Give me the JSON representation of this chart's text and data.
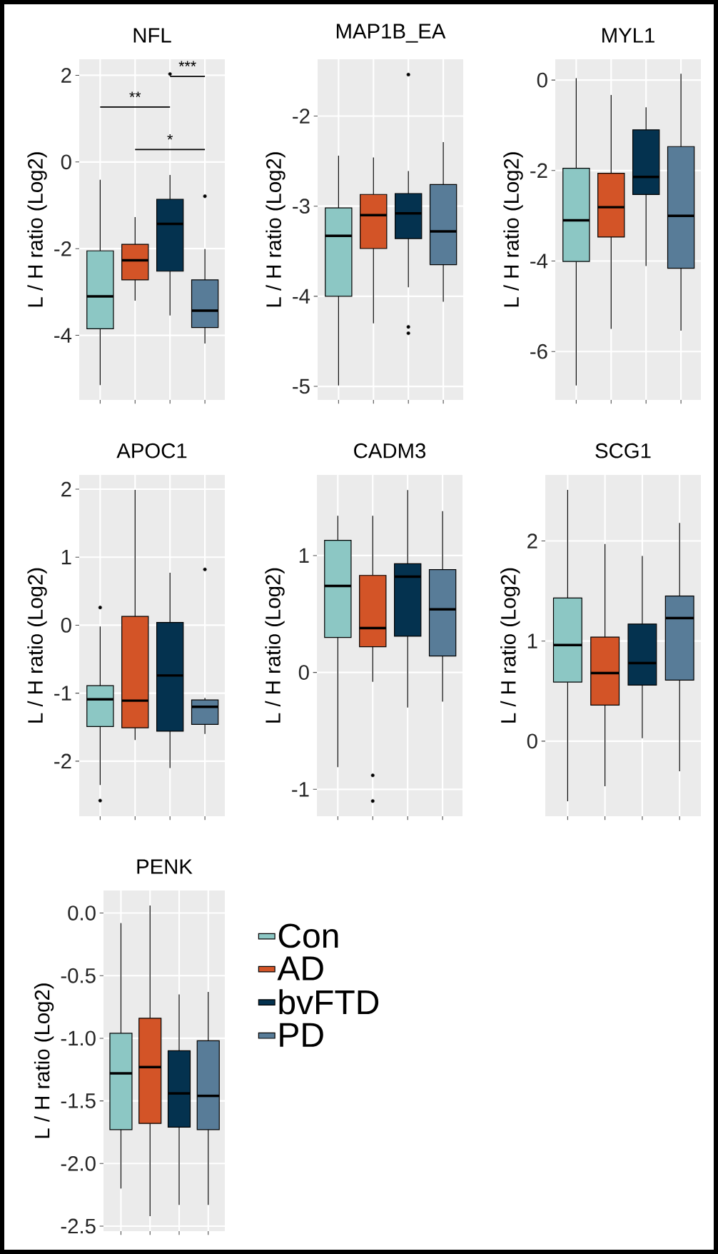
{
  "chart_data": [
    {
      "type": "box",
      "title": "NFL",
      "ylabel": "L / H ratio (Log2)",
      "categories": [
        null,
        null,
        null,
        null
      ],
      "colors": [
        "#8cc7c4",
        "#d35427",
        "#04324f",
        "#587c98"
      ],
      "boxes": [
        {
          "low": -5.15,
          "q1": -3.85,
          "median": -3.1,
          "q3": -2.05,
          "high": -0.41
        },
        {
          "low": -3.2,
          "q1": -2.72,
          "median": -2.27,
          "q3": -1.9,
          "high": -1.27
        },
        {
          "low": -3.54,
          "q1": -2.52,
          "median": -1.43,
          "q3": -0.86,
          "high": -0.3,
          "outliers": [
            2.03
          ]
        },
        {
          "low": -4.19,
          "q1": -3.82,
          "median": -3.43,
          "q3": -2.72,
          "high": -2.01,
          "outliers": [
            -0.79
          ]
        }
      ],
      "ylim": [
        -5.49,
        2.37
      ],
      "yticks": [
        -4,
        -2,
        0,
        2
      ],
      "grid": true,
      "annotations": [
        "**",
        "*",
        "***"
      ]
    },
    {
      "type": "box",
      "title": "MAP1B_EA",
      "ylabel": "L / H ratio (Log2)",
      "categories": [
        null,
        null,
        null,
        null
      ],
      "colors": [
        "#8cc7c4",
        "#d35427",
        "#04324f",
        "#587c98"
      ],
      "boxes": [
        {
          "low": -4.99,
          "q1": -4.0,
          "median": -3.33,
          "q3": -3.02,
          "high": -2.44
        },
        {
          "low": -4.3,
          "q1": -3.47,
          "median": -3.1,
          "q3": -2.87,
          "high": -2.46
        },
        {
          "low": -3.9,
          "q1": -3.36,
          "median": -3.08,
          "q3": -2.86,
          "high": -2.61,
          "outliers": [
            -1.54,
            -4.34,
            -4.41
          ]
        },
        {
          "low": -4.06,
          "q1": -3.65,
          "median": -3.28,
          "q3": -2.76,
          "high": -2.29
        }
      ],
      "ylim": [
        -5.15,
        -1.37
      ],
      "yticks": [
        -5,
        -4,
        -3,
        -2
      ],
      "grid": true
    },
    {
      "type": "box",
      "title": "MYL1",
      "ylabel": "L / H ratio (Log2)",
      "categories": [
        null,
        null,
        null,
        null
      ],
      "colors": [
        "#8cc7c4",
        "#d35427",
        "#04324f",
        "#587c98"
      ],
      "boxes": [
        {
          "low": -6.75,
          "q1": -4.01,
          "median": -3.1,
          "q3": -1.95,
          "high": 0.04
        },
        {
          "low": -5.5,
          "q1": -3.47,
          "median": -2.81,
          "q3": -2.06,
          "high": -0.33
        },
        {
          "low": -4.11,
          "q1": -2.53,
          "median": -2.14,
          "q3": -1.1,
          "high": -0.6
        },
        {
          "low": -5.54,
          "q1": -4.16,
          "median": -3.0,
          "q3": -1.47,
          "high": 0.14
        }
      ],
      "ylim": [
        -7.07,
        0.46
      ],
      "yticks": [
        -6,
        -4,
        -2,
        0
      ],
      "grid": true
    },
    {
      "type": "box",
      "title": "APOC1",
      "ylabel": "L / H ratio (Log2)",
      "categories": [
        null,
        null,
        null,
        null
      ],
      "colors": [
        "#8cc7c4",
        "#d35427",
        "#04324f",
        "#587c98"
      ],
      "boxes": [
        {
          "low": -2.35,
          "q1": -1.49,
          "median": -1.09,
          "q3": -0.89,
          "high": -0.02,
          "outliers": [
            0.26,
            -2.58
          ]
        },
        {
          "low": -1.69,
          "q1": -1.51,
          "median": -1.11,
          "q3": 0.13,
          "high": 1.99
        },
        {
          "low": -2.1,
          "q1": -1.56,
          "median": -0.74,
          "q3": 0.04,
          "high": 0.77
        },
        {
          "low": -1.6,
          "q1": -1.46,
          "median": -1.2,
          "q3": -1.1,
          "high": -1.07,
          "outliers": [
            0.82
          ]
        }
      ],
      "ylim": [
        -2.81,
        2.21
      ],
      "yticks": [
        -2,
        -1,
        0,
        1,
        2
      ],
      "grid": true
    },
    {
      "type": "box",
      "title": "CADM3",
      "ylabel": "L / H ratio (Log2)",
      "categories": [
        null,
        null,
        null,
        null
      ],
      "colors": [
        "#8cc7c4",
        "#d35427",
        "#04324f",
        "#587c98"
      ],
      "boxes": [
        {
          "low": -0.81,
          "q1": 0.3,
          "median": 0.74,
          "q3": 1.13,
          "high": 1.34
        },
        {
          "low": -0.08,
          "q1": 0.22,
          "median": 0.38,
          "q3": 0.83,
          "high": 1.34,
          "outliers": [
            -0.88,
            -1.1
          ]
        },
        {
          "low": -0.3,
          "q1": 0.31,
          "median": 0.82,
          "q3": 0.93,
          "high": 1.56
        },
        {
          "low": -0.25,
          "q1": 0.14,
          "median": 0.54,
          "q3": 0.88,
          "high": 1.38
        }
      ],
      "ylim": [
        -1.23,
        1.69
      ],
      "yticks": [
        -1,
        0,
        1
      ],
      "grid": true
    },
    {
      "type": "box",
      "title": "SCG1",
      "ylabel": "L / H ratio (Log2)",
      "categories": [
        null,
        null,
        null,
        null
      ],
      "colors": [
        "#8cc7c4",
        "#d35427",
        "#04324f",
        "#587c98"
      ],
      "boxes": [
        {
          "low": -0.6,
          "q1": 0.59,
          "median": 0.96,
          "q3": 1.43,
          "high": 2.51
        },
        {
          "low": -0.45,
          "q1": 0.36,
          "median": 0.68,
          "q3": 1.04,
          "high": 1.97
        },
        {
          "low": 0.03,
          "q1": 0.56,
          "median": 0.78,
          "q3": 1.17,
          "high": 1.85
        },
        {
          "low": -0.3,
          "q1": 0.61,
          "median": 1.23,
          "q3": 1.45,
          "high": 2.18
        }
      ],
      "ylim": [
        -0.75,
        2.66
      ],
      "yticks": [
        0,
        1,
        2
      ],
      "grid": true
    },
    {
      "type": "box",
      "title": "PENK",
      "ylabel": "L / H ratio (Log2)",
      "categories": [
        null,
        null,
        null,
        null
      ],
      "legend": "right",
      "series": [
        {
          "name": "Con",
          "color": "#8cc7c4",
          "boxes": [
            {
              "low": -2.2,
              "q1": -1.73,
              "median": -1.28,
              "q3": -0.96,
              "high": -0.08
            },
            null,
            null,
            null
          ]
        },
        {
          "name": "AD",
          "color": "#d35427",
          "boxes": [
            null,
            {
              "low": -2.42,
              "q1": -1.68,
              "median": -1.23,
              "q3": -0.84,
              "high": 0.06
            },
            null,
            null
          ]
        },
        {
          "name": "bvFTD",
          "color": "#04324f",
          "boxes": [
            null,
            null,
            {
              "low": -2.33,
              "q1": -1.71,
              "median": -1.44,
              "q3": -1.1,
              "high": -0.65
            },
            null
          ]
        },
        {
          "name": "PD",
          "color": "#587c98",
          "boxes": [
            null,
            null,
            null,
            {
              "low": -2.33,
              "q1": -1.73,
              "median": -1.46,
              "q3": -1.02,
              "high": -0.63
            }
          ]
        }
      ],
      "ylim": [
        -2.54,
        0.18
      ],
      "yticks": [
        {
          "value": -2.5,
          "label": "-2.5"
        },
        {
          "value": -2.0,
          "label": "-2.0"
        },
        {
          "value": -1.5,
          "label": "-1.5"
        },
        {
          "value": -1.0,
          "label": "-1.0"
        },
        {
          "value": -0.5,
          "label": "-0.5"
        },
        {
          "value": 0.0,
          "label": "0.0"
        }
      ],
      "grid": true
    }
  ]
}
